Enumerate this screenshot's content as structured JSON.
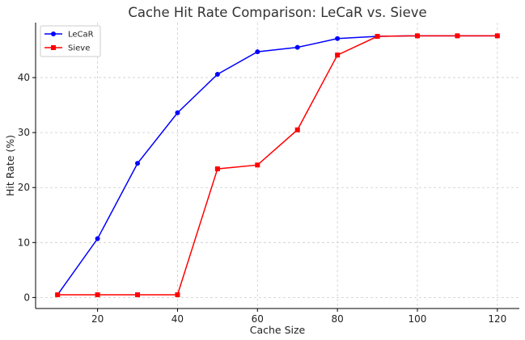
{
  "chart_data": {
    "type": "line",
    "title": "Cache Hit Rate Comparison: LeCaR vs. Sieve",
    "xlabel": "Cache Size",
    "ylabel": "Hit Rate (%)",
    "xlim": [
      4.5,
      125.5
    ],
    "ylim": [
      -2,
      50
    ],
    "xticks": [
      20,
      40,
      60,
      80,
      100,
      120
    ],
    "yticks": [
      0,
      10,
      20,
      30,
      40
    ],
    "grid": true,
    "legend_position": "upper-left",
    "x": [
      10,
      20,
      30,
      40,
      50,
      60,
      70,
      80,
      90,
      100,
      110,
      120
    ],
    "series": [
      {
        "name": "LeCaR",
        "color": "#0000ff",
        "marker": "circle",
        "values": [
          0.5,
          10.7,
          24.4,
          33.6,
          40.6,
          44.7,
          45.5,
          47.1,
          47.5,
          47.6,
          47.6,
          47.6
        ]
      },
      {
        "name": "Sieve",
        "color": "#ff0000",
        "marker": "square",
        "values": [
          0.5,
          0.5,
          0.5,
          0.5,
          23.4,
          24.1,
          30.5,
          44.1,
          47.5,
          47.6,
          47.6,
          47.6
        ]
      }
    ]
  }
}
